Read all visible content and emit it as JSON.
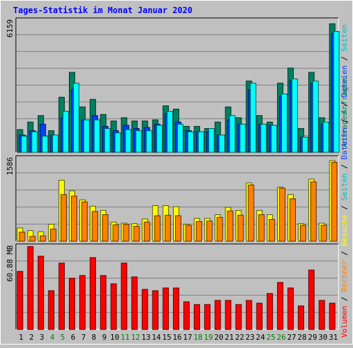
{
  "chart_data": {
    "type": "bar",
    "title": "Tages-Statistik im Monat Januar 2020",
    "categories": [
      "1",
      "2",
      "3",
      "4",
      "5",
      "6",
      "7",
      "8",
      "9",
      "10",
      "11",
      "12",
      "13",
      "14",
      "15",
      "16",
      "17",
      "18",
      "19",
      "20",
      "21",
      "22",
      "23",
      "24",
      "25",
      "26",
      "27",
      "28",
      "29",
      "30",
      "31"
    ],
    "weekend_days": [
      "4",
      "5",
      "11",
      "12",
      "18",
      "19",
      "25",
      "26"
    ],
    "panels": [
      {
        "id": "requests",
        "ylabel": "6159",
        "ylim": [
          0,
          6159
        ],
        "series": [
          {
            "name": "Anfragen",
            "color": "#008060",
            "values": [
              1050,
              1400,
              1700,
              1000,
              2550,
              3700,
              2100,
              2450,
              1750,
              1450,
              1600,
              1450,
              1450,
              1500,
              2150,
              2000,
              1200,
              1200,
              1100,
              1400,
              2100,
              1600,
              3300,
              1700,
              1400,
              3200,
              3900,
              1100,
              3700,
              1600,
              5950
            ]
          },
          {
            "name": "Dateien",
            "color": "#0040ff",
            "values": [
              800,
              1000,
              1300,
              800,
              1600,
              2900,
              1500,
              1700,
              1200,
              1000,
              1250,
              1100,
              1150,
              1300,
              1800,
              1400,
              1000,
              950,
              950,
              800,
              1500,
              1300,
              2900,
              1300,
              1250,
              2600,
              3300,
              700,
              3200,
              1300,
              5500
            ]
          },
          {
            "name": "Seiten",
            "color": "#00ffff",
            "values": [
              750,
              950,
              750,
              800,
              1900,
              3200,
              1500,
              1500,
              1100,
              900,
              1050,
              1000,
              1000,
              1250,
              1900,
              1300,
              950,
              950,
              1100,
              800,
              1700,
              1300,
              3200,
              1300,
              1250,
              2700,
              3400,
              700,
              3300,
              1400,
              5600
            ]
          }
        ]
      },
      {
        "id": "visits",
        "ylabel": "1586",
        "ylim": [
          0,
          1586
        ],
        "series": [
          {
            "name": "Besuche",
            "color": "#ffff00",
            "values": [
              250,
              200,
              180,
              320,
              1150,
              950,
              780,
              660,
              580,
              360,
              340,
              330,
              420,
              670,
              670,
              650,
              320,
              430,
              430,
              500,
              640,
              580,
              1100,
              580,
              500,
              1020,
              880,
              330,
              1170,
              340,
              1520
            ]
          },
          {
            "name": "Seiten",
            "color": "#ff8000",
            "values": [
              170,
              90,
              100,
              230,
              880,
              850,
              740,
              560,
              500,
              310,
              320,
              280,
              360,
              480,
              490,
              480,
              300,
              370,
              380,
              450,
              570,
              490,
              1060,
              500,
              410,
              1000,
              800,
              300,
              1120,
              300,
              1490
            ]
          }
        ]
      },
      {
        "id": "volume",
        "ylabel": "60.88 MB",
        "ylim": [
          0,
          60.88
        ],
        "series": [
          {
            "name": "Volumen",
            "color": "#ff0000",
            "values": [
              42,
              60,
              53,
              28,
              48,
              37,
              39,
              52,
              39,
              33,
              48,
              38,
              29,
              28,
              30,
              30,
              20,
              18,
              18,
              21,
              21,
              18,
              21,
              19,
              26,
              34,
              30,
              17,
              43,
              21,
              19
            ]
          }
        ]
      }
    ],
    "legend_right": [
      {
        "text": "Anfragen",
        "color": "#008060"
      },
      {
        "text": " / ",
        "color": "#000000"
      },
      {
        "text": "Dateien",
        "color": "#0040ff"
      },
      {
        "text": " / ",
        "color": "#000000"
      },
      {
        "text": "Seiten",
        "color": "#00c0c0"
      }
    ],
    "legend_left": [
      {
        "text": "Volumen",
        "color": "#ff0000"
      },
      {
        "text": " / ",
        "color": "#000000"
      },
      {
        "text": "Rechner",
        "color": "#ff8000"
      },
      {
        "text": " / ",
        "color": "#000000"
      },
      {
        "text": "Besuche",
        "color": "#ffff00"
      },
      {
        "text": " / ",
        "color": "#000000"
      },
      {
        "text": "Seiten",
        "color": "#00c0c0"
      },
      {
        "text": " / ",
        "color": "#000000"
      },
      {
        "text": "Dateien",
        "color": "#0040ff"
      },
      {
        "text": " / ",
        "color": "#000000"
      },
      {
        "text": "Anfragen",
        "color": "#008060"
      }
    ],
    "colors": {
      "background": "#c0c0c0",
      "title": "#0000ff",
      "grid": "#808080",
      "weekend_label": "#008000",
      "weekday_label": "#000000"
    }
  }
}
